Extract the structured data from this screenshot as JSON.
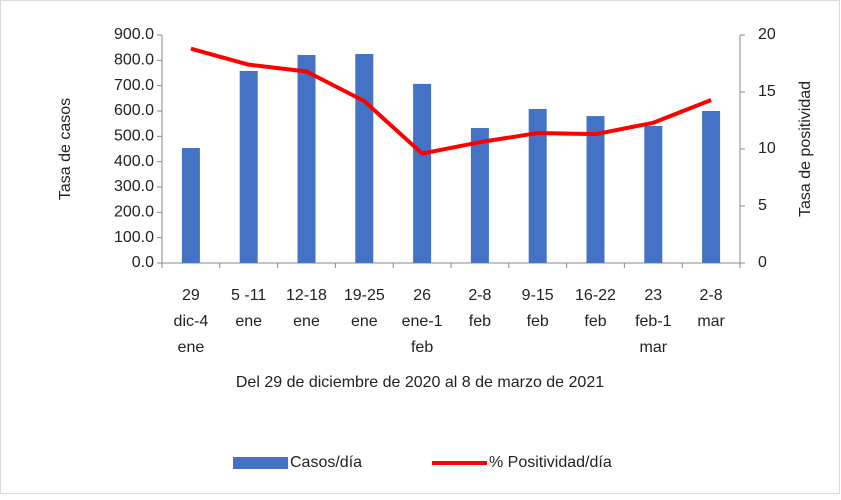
{
  "chart_data": {
    "type": "bar-line",
    "x_label": "Del 29 de diciembre de 2020 al 8 de marzo de 2021",
    "y_label": "Tasa de casos",
    "y2_label": "Tasa de positividad",
    "categories": [
      "29 dic-4 ene",
      "5 -11 ene",
      "12-18 ene",
      "19-25 ene",
      "26 ene-1 feb",
      "2-8 feb",
      "9-15 feb",
      "16-22 feb",
      "23 feb-1 mar",
      "2-8 mar"
    ],
    "series": [
      {
        "name": "Casos/día",
        "type": "bar",
        "color": "#4472c4",
        "values": [
          454,
          758,
          821,
          825,
          707,
          533,
          608,
          580,
          541,
          600
        ]
      },
      {
        "name": "% Positividad/día",
        "type": "line",
        "axis": "y2",
        "color": "#ff0000",
        "values": [
          18.8,
          17.4,
          16.8,
          14.2,
          9.6,
          10.6,
          11.4,
          11.3,
          12.3,
          14.3
        ]
      }
    ],
    "ylim": [
      0,
      900
    ],
    "yticks": [
      {
        "value": 0,
        "label": "0.0"
      },
      {
        "value": 100,
        "label": "100.0"
      },
      {
        "value": 200,
        "label": "200.0"
      },
      {
        "value": 300,
        "label": "300.0"
      },
      {
        "value": 400,
        "label": "400.0"
      },
      {
        "value": 500,
        "label": "500.0"
      },
      {
        "value": 600,
        "label": "600.0"
      },
      {
        "value": 700,
        "label": "700.0"
      },
      {
        "value": 800,
        "label": "800.0"
      },
      {
        "value": 900,
        "label": "900.0"
      }
    ],
    "y2lim": [
      0,
      20
    ],
    "y2ticks": [
      0,
      5,
      10,
      15,
      20
    ],
    "legend": "bottom"
  }
}
